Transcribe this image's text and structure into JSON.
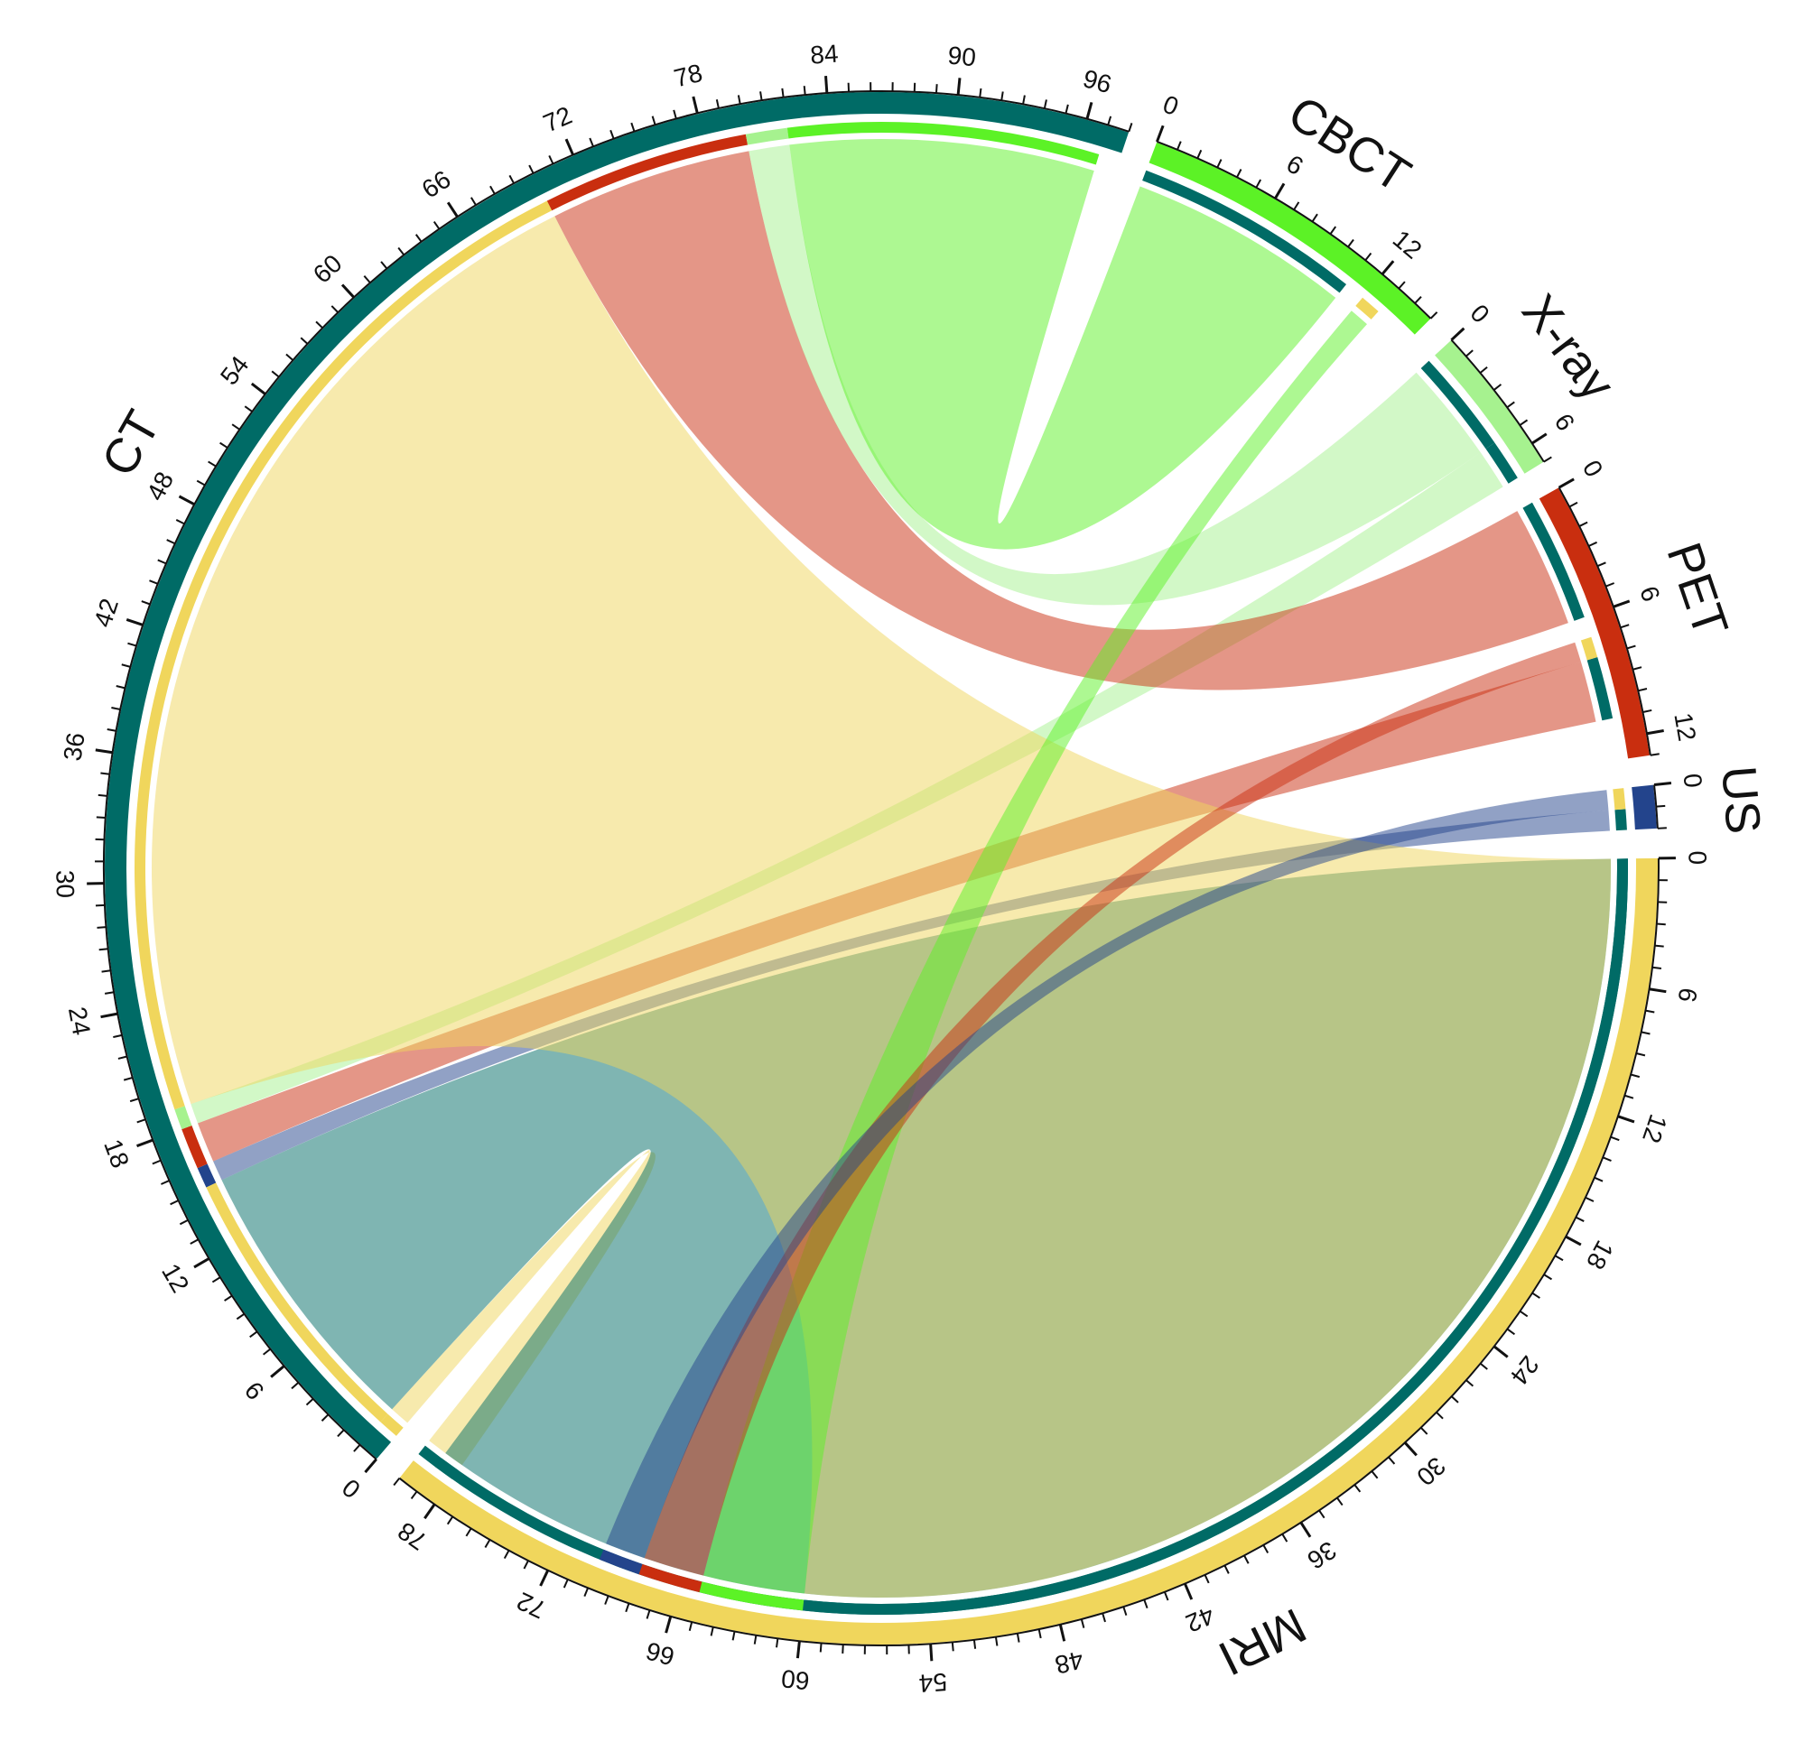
{
  "chart_data": {
    "type": "chord",
    "title": "",
    "sectors": [
      {
        "name": "CT",
        "total": 98,
        "color": "#006b66",
        "tick_labels": [
          "0",
          "6",
          "12",
          "18",
          "24",
          "30",
          "36",
          "42",
          "48",
          "54",
          "60",
          "66",
          "72",
          "78",
          "84",
          "90",
          "96"
        ]
      },
      {
        "name": "CBCT",
        "total": 15,
        "color": "#5cf226",
        "tick_labels": [
          "0",
          "6",
          "12"
        ]
      },
      {
        "name": "X-ray",
        "total": 7,
        "color": "#a6f28f",
        "tick_labels": [
          "0",
          "6"
        ]
      },
      {
        "name": "PET",
        "total": 13,
        "color": "#c92e0f",
        "tick_labels": [
          "0",
          "6",
          "12"
        ]
      },
      {
        "name": "US",
        "total": 2,
        "color": "#23448c",
        "tick_labels": [
          "0"
        ]
      },
      {
        "name": "MRI",
        "total": 80,
        "color": "#f0d65c",
        "tick_labels": [
          "0",
          "6",
          "12",
          "18",
          "24",
          "30",
          "36",
          "42",
          "48",
          "54",
          "60",
          "66",
          "72",
          "78"
        ]
      }
    ],
    "links": [
      {
        "source": "CT",
        "source_range": [
          0,
          1
        ],
        "target": "MRI",
        "target_range": [
          78,
          80
        ],
        "color": "#f0d65c"
      },
      {
        "source": "CT",
        "source_range": [
          1,
          15
        ],
        "target": "MRI",
        "target_range": [
          0,
          79
        ],
        "color": "#006b66"
      },
      {
        "source": "CT",
        "source_range": [
          15,
          16
        ],
        "target": "US",
        "target_range": [
          1,
          2
        ],
        "color": "#23448c"
      },
      {
        "source": "CT",
        "source_range": [
          16,
          18
        ],
        "target": "PET",
        "target_range": [
          8,
          11
        ],
        "color": "#c92e0f"
      },
      {
        "source": "CT",
        "source_range": [
          18,
          19
        ],
        "target": "X-ray",
        "target_range": [
          5,
          7
        ],
        "color": "#a6f28f"
      },
      {
        "source": "CT",
        "source_range": [
          19,
          70
        ],
        "target": "MRI",
        "target_range": [
          0,
          60
        ],
        "color": "#f0d65c"
      },
      {
        "source": "CT",
        "source_range": [
          70,
          80
        ],
        "target": "PET",
        "target_range": [
          0,
          6
        ],
        "color": "#c92e0f"
      },
      {
        "source": "CT",
        "source_range": [
          80,
          82
        ],
        "target": "X-ray",
        "target_range": [
          0,
          5
        ],
        "color": "#a6f28f"
      },
      {
        "source": "CT",
        "source_range": [
          82,
          97
        ],
        "target": "CBCT",
        "target_range": [
          0,
          11
        ],
        "color": "#5cf226"
      },
      {
        "source": "CBCT",
        "source_range": [
          12,
          13
        ],
        "target": "MRI",
        "target_range": [
          60,
          65
        ],
        "color": "#5cf226"
      },
      {
        "source": "PET",
        "source_range": [
          7,
          8
        ],
        "target": "MRI",
        "target_range": [
          65,
          68
        ],
        "color": "#c92e0f"
      },
      {
        "source": "US",
        "source_range": [
          0,
          1
        ],
        "target": "MRI",
        "target_range": [
          68,
          70
        ],
        "color": "#23448c"
      }
    ],
    "legend": "none"
  }
}
